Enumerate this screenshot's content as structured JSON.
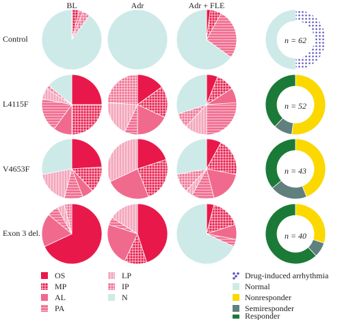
{
  "figure": {
    "columns": [
      "BL",
      "Adr",
      "Adr + FLE"
    ],
    "rows": [
      "Control",
      "L4115F",
      "V4653F",
      "Exon 3 del."
    ],
    "n_values": [
      "n = 62",
      "n = 52",
      "n = 43",
      "n = 40"
    ]
  },
  "colors": {
    "OS": "#e8194a",
    "MP": "#e8194a",
    "AL": "#f06a8e",
    "PA": "#f06a8e",
    "LP": "#f4a6bc",
    "IP": "#f06a8e",
    "N": "#cdeae8",
    "drug_induced_arrhythmia": "#5b55c0",
    "normal": "#cdeae8",
    "nonresponder": "#fbd800",
    "semiresponder": "#5f807c",
    "responder": "#1b7a37"
  },
  "legend_left": [
    {
      "key": "OS",
      "label": "OS",
      "pattern": "solid"
    },
    {
      "key": "MP",
      "label": "MP",
      "pattern": "grid"
    },
    {
      "key": "AL",
      "label": "AL",
      "pattern": "solid"
    },
    {
      "key": "PA",
      "label": "PA",
      "pattern": "hlines"
    },
    {
      "key": "LP",
      "label": "LP",
      "pattern": "vlines"
    },
    {
      "key": "IP",
      "label": "IP",
      "pattern": "grid"
    },
    {
      "key": "N",
      "label": "N",
      "pattern": "solid"
    }
  ],
  "legend_right": [
    {
      "key": "drug_induced_arrhythmia",
      "label": "Drug-induced arrhythmia",
      "pattern": "dots"
    },
    {
      "key": "normal",
      "label": "Normal",
      "pattern": "solid"
    },
    {
      "key": "nonresponder",
      "label": "Nonresponder",
      "pattern": "solid"
    },
    {
      "key": "semiresponder",
      "label": "Semiresponder",
      "pattern": "solid"
    },
    {
      "key": "responder",
      "label": "Responder",
      "pattern": "solid"
    }
  ],
  "chart_data": {
    "type": "pie",
    "columns": [
      "BL",
      "Adr",
      "Adr + FLE"
    ],
    "rows": [
      "Control",
      "L4115F",
      "V4653F",
      "Exon 3 del."
    ],
    "categories": [
      "OS",
      "MP",
      "AL",
      "PA",
      "LP",
      "IP",
      "N"
    ],
    "pies": [
      [
        [
          0,
          4,
          0,
          2,
          0,
          4,
          90
        ],
        [
          0,
          0,
          0,
          0,
          0,
          0,
          100
        ],
        [
          2,
          6,
          0,
          27,
          0,
          0,
          65
        ]
      ],
      [
        [
          25,
          25,
          10,
          18,
          6,
          2,
          14
        ],
        [
          15,
          17,
          18,
          7,
          19,
          24,
          0
        ],
        [
          6,
          10,
          8,
          26,
          12,
          8,
          30
        ]
      ],
      [
        [
          24,
          14,
          6,
          10,
          18,
          0,
          28
        ],
        [
          20,
          24,
          24,
          0,
          32,
          0,
          0
        ],
        [
          8,
          20,
          18,
          12,
          4,
          10,
          28
        ]
      ],
      [
        [
          68,
          0,
          18,
          6,
          4,
          4,
          0
        ],
        [
          45,
          12,
          23,
          4,
          16,
          0,
          0
        ],
        [
          4,
          16,
          8,
          4,
          0,
          0,
          68
        ]
      ]
    ],
    "donuts": [
      {
        "label": "n = 62",
        "slices": [
          {
            "key": "drug_induced_arrhythmia",
            "value": 50
          },
          {
            "key": "normal",
            "value": 50
          }
        ]
      },
      {
        "label": "n = 52",
        "slices": [
          {
            "key": "nonresponder",
            "value": 52
          },
          {
            "key": "semiresponder",
            "value": 10
          },
          {
            "key": "responder",
            "value": 38
          }
        ]
      },
      {
        "label": "n = 43",
        "slices": [
          {
            "key": "nonresponder",
            "value": 44
          },
          {
            "key": "semiresponder",
            "value": 20
          },
          {
            "key": "responder",
            "value": 36
          }
        ]
      },
      {
        "label": "n = 40",
        "slices": [
          {
            "key": "nonresponder",
            "value": 30
          },
          {
            "key": "semiresponder",
            "value": 8
          },
          {
            "key": "responder",
            "value": 62
          }
        ]
      }
    ]
  }
}
